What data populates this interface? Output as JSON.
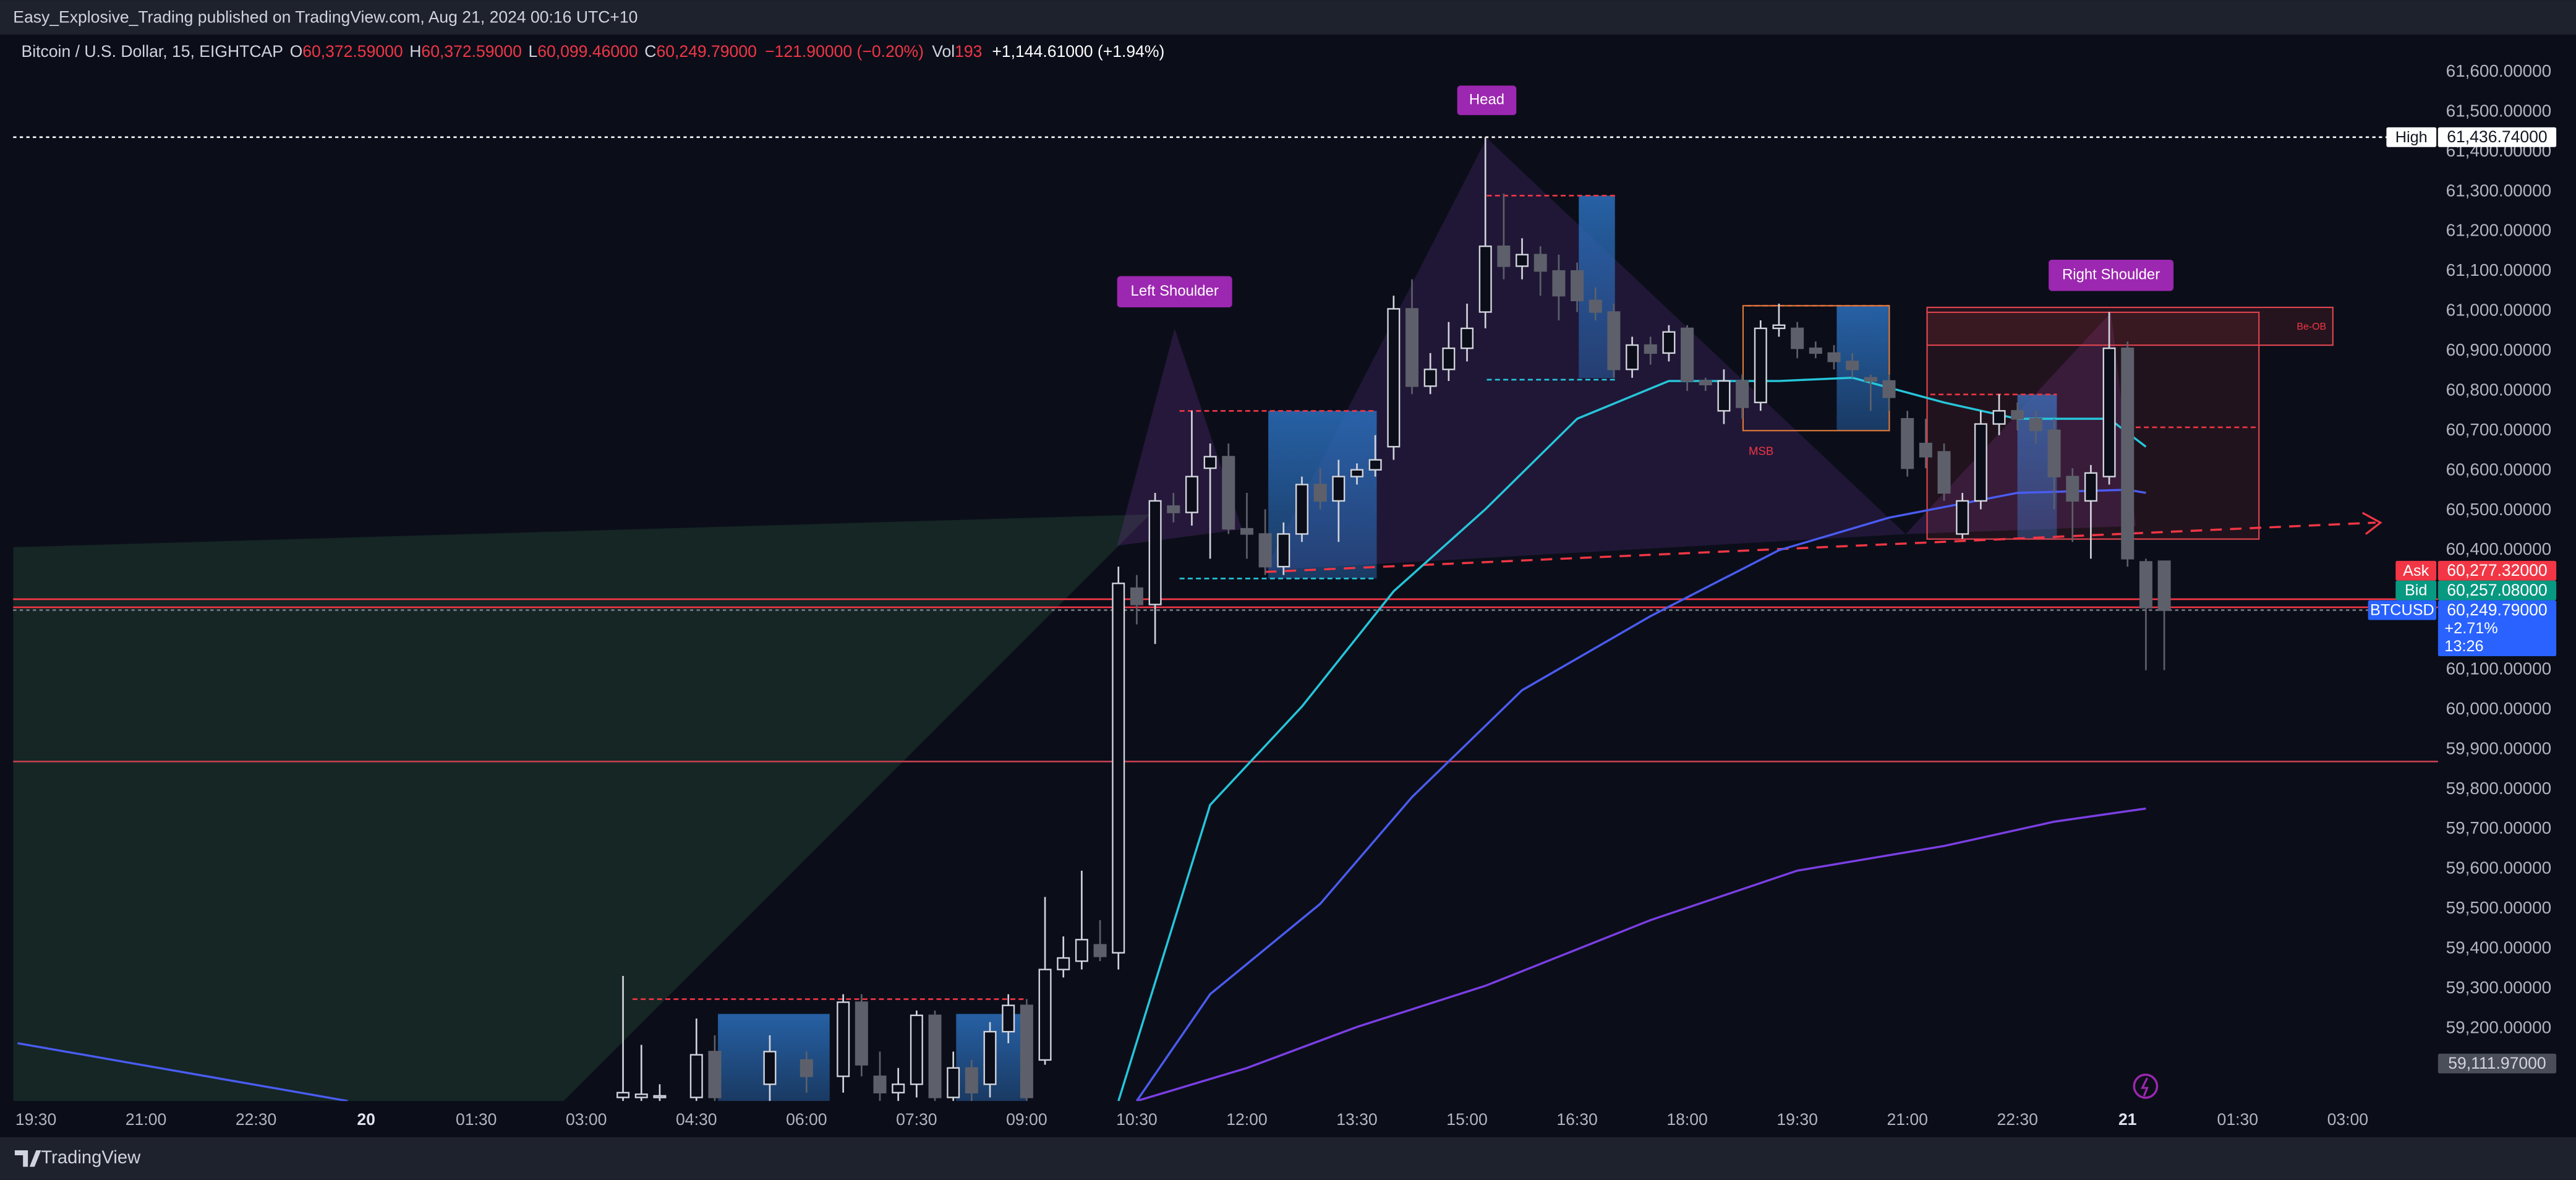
{
  "header": {
    "publisher": "Easy_Explosive_Trading published on TradingView.com, Aug 21, 2024 00:16 UTC+10"
  },
  "legend": {
    "symbol": "Bitcoin / U.S. Dollar, 15, EIGHTCAP",
    "open_label": "O",
    "open": "60,372.59000",
    "high_label": "H",
    "high": "60,372.59000",
    "low_label": "L",
    "low": "60,099.46000",
    "close_label": "C",
    "close": "60,249.79000",
    "change": "−121.90000 (−0.20%)",
    "volume_label": "Vol",
    "volume": "193",
    "indicator": "+1,144.61000 (+1.94%)"
  },
  "footer": {
    "brand": "TradingView"
  },
  "chart_data": {
    "type": "candlestick",
    "annotations": {
      "head": "Head",
      "left_shoulder": "Left Shoulder",
      "right_shoulder": "Right Shoulder",
      "msb": "MSB",
      "bearish_ob": "Be-OB"
    },
    "xlim": [
      -0.31,
      32.73
    ],
    "ylim": [
      59018,
      61690
    ],
    "grid": false,
    "xticks": [
      {
        "value": 0,
        "label": "19:30"
      },
      {
        "value": 1.5,
        "label": "21:00"
      },
      {
        "value": 3,
        "label": "22:30"
      },
      {
        "value": 4.5,
        "label": "20"
      },
      {
        "value": 6,
        "label": "01:30"
      },
      {
        "value": 7.5,
        "label": "03:00"
      },
      {
        "value": 9,
        "label": "04:30"
      },
      {
        "value": 10.5,
        "label": "06:00"
      },
      {
        "value": 12,
        "label": "07:30"
      },
      {
        "value": 13.5,
        "label": "09:00"
      },
      {
        "value": 15,
        "label": "10:30"
      },
      {
        "value": 16.5,
        "label": "12:00"
      },
      {
        "value": 18,
        "label": "13:30"
      },
      {
        "value": 19.5,
        "label": "15:00"
      },
      {
        "value": 21,
        "label": "16:30"
      },
      {
        "value": 22.5,
        "label": "18:00"
      },
      {
        "value": 24,
        "label": "19:30"
      },
      {
        "value": 25.5,
        "label": "21:00"
      },
      {
        "value": 27,
        "label": "22:30"
      },
      {
        "value": 28.5,
        "label": "21"
      },
      {
        "value": 30,
        "label": "01:30"
      },
      {
        "value": 31.5,
        "label": "03:00"
      }
    ],
    "yticks": [
      {
        "value": 61600,
        "label": "61,600.00000"
      },
      {
        "value": 61500,
        "label": "61,500.00000"
      },
      {
        "value": 61400,
        "label": "61,400.00000"
      },
      {
        "value": 61300,
        "label": "61,300.00000"
      },
      {
        "value": 61200,
        "label": "61,200.00000"
      },
      {
        "value": 61100,
        "label": "61,100.00000"
      },
      {
        "value": 61000,
        "label": "61,000.00000"
      },
      {
        "value": 60900,
        "label": "60,900.00000"
      },
      {
        "value": 60800,
        "label": "60,800.00000"
      },
      {
        "value": 60700,
        "label": "60,700.00000"
      },
      {
        "value": 60600,
        "label": "60,600.00000"
      },
      {
        "value": 60500,
        "label": "60,500.00000"
      },
      {
        "value": 60400,
        "label": "60,400.00000"
      },
      {
        "value": 60100,
        "label": "60,100.00000"
      },
      {
        "value": 60000,
        "label": "60,000.00000"
      },
      {
        "value": 59900,
        "label": "59,900.00000"
      },
      {
        "value": 59800,
        "label": "59,800.00000"
      },
      {
        "value": 59700,
        "label": "59,700.00000"
      },
      {
        "value": 59600,
        "label": "59,600.00000"
      },
      {
        "value": 59500,
        "label": "59,500.00000"
      },
      {
        "value": 59400,
        "label": "59,400.00000"
      },
      {
        "value": 59300,
        "label": "59,300.00000"
      },
      {
        "value": 59200,
        "label": "59,200.00000"
      }
    ],
    "up_color": "#d1d4dc",
    "down_color": "#5d606b",
    "x": [
      8,
      8.25,
      8.5,
      9,
      9.25,
      10,
      10.5,
      11,
      11.25,
      11.5,
      11.75,
      12,
      12.25,
      12.5,
      12.75,
      13,
      13.25,
      13.5,
      13.75,
      14,
      14.25,
      14.5,
      14.75,
      15,
      15.25,
      15.5,
      15.75,
      16,
      16.25,
      16.5,
      16.75,
      17,
      17.25,
      17.5,
      17.75,
      18,
      18.25,
      18.5,
      18.75,
      19,
      19.25,
      19.5,
      19.75,
      20,
      20.25,
      20.5,
      20.75,
      21,
      21.25,
      21.5,
      21.75,
      22,
      22.25,
      22.5,
      22.75,
      23,
      23.25,
      23.5,
      23.75,
      24,
      24.25,
      24.5,
      24.75,
      25,
      25.25,
      25.5,
      25.75,
      26,
      26.25,
      26.5,
      26.75,
      27,
      27.25,
      27.5,
      27.75,
      28,
      28.25,
      28.5,
      28.75,
      29
    ],
    "open": [
      59027,
      59027,
      59027,
      59027,
      59142,
      59060,
      59121,
      59080,
      59266,
      59080,
      59039,
      59060,
      59233,
      59027,
      59101,
      59060,
      59192,
      59258,
      59121,
      59348,
      59369,
      59410,
      59390,
      60305,
      60264,
      60511,
      60495,
      60606,
      60635,
      60454,
      60441,
      60359,
      60441,
      60565,
      60524,
      60585,
      60602,
      60660,
      61006,
      60812,
      60854,
      60907,
      60998,
      61163,
      61113,
      61142,
      61101,
      61101,
      61027,
      60998,
      60854,
      60915,
      60895,
      60957,
      60825,
      60750,
      60825,
      60771,
      60957,
      60957,
      60907,
      60895,
      60874,
      60833,
      60825,
      60730,
      60668,
      60647,
      60441,
      60524,
      60717,
      60750,
      60730,
      60701,
      60585,
      60524,
      60585,
      60907,
      60371,
      60372.59
    ],
    "high": [
      59332,
      59159,
      59060,
      59225,
      59183,
      59183,
      59142,
      59286,
      59286,
      59142,
      59101,
      59245,
      59245,
      59142,
      59121,
      59216,
      59286,
      59274,
      59530,
      59431,
      59596,
      59472,
      60359,
      60338,
      60544,
      60544,
      60750,
      60668,
      60668,
      60544,
      60503,
      60470,
      60585,
      60606,
      60627,
      60618,
      60689,
      61039,
      61080,
      60895,
      60973,
      61019,
      61436.74,
      61295,
      61183,
      61163,
      61142,
      61122,
      61060,
      61019,
      60936,
      60936,
      60965,
      60965,
      60833,
      60854,
      60841,
      60977,
      61019,
      60973,
      60924,
      60915,
      60895,
      60841,
      60841,
      60750,
      60730,
      60668,
      60544,
      60750,
      60792,
      60771,
      60750,
      60730,
      60606,
      60614,
      60998,
      60924,
      60379,
      60372.59
    ],
    "low": [
      59018,
      59018,
      59018,
      59018,
      59018,
      59018,
      59039,
      59039,
      59080,
      59018,
      59018,
      59027,
      59018,
      59018,
      59018,
      59027,
      59163,
      59018,
      59109,
      59328,
      59348,
      59369,
      59348,
      60214,
      60165,
      60470,
      60462,
      60379,
      60441,
      60379,
      60338,
      60338,
      60421,
      60503,
      60421,
      60565,
      60585,
      60627,
      60792,
      60792,
      60825,
      60874,
      60957,
      61080,
      61080,
      61039,
      60977,
      60998,
      60977,
      60833,
      60833,
      60866,
      60874,
      60800,
      60800,
      60717,
      60730,
      60750,
      60936,
      60882,
      60882,
      60854,
      60833,
      60750,
      60750,
      60585,
      60606,
      60524,
      60429,
      60503,
      60689,
      60701,
      60668,
      60503,
      60421,
      60379,
      60565,
      60359,
      60099,
      60099.46
    ],
    "close": [
      59039,
      59035,
      59031,
      59134,
      59027,
      59142,
      59080,
      59266,
      59109,
      59039,
      59060,
      59233,
      59027,
      59101,
      59039,
      59192,
      59258,
      59027,
      59348,
      59377,
      59423,
      59381,
      60317,
      60264,
      60524,
      60495,
      60585,
      60635,
      60454,
      60441,
      60359,
      60441,
      60565,
      60524,
      60585,
      60602,
      60627,
      61006,
      60812,
      60854,
      60907,
      60957,
      61163,
      61113,
      61142,
      61101,
      61039,
      61027,
      60998,
      60854,
      60915,
      60895,
      60948,
      60825,
      60816,
      60825,
      60759,
      60957,
      60965,
      60907,
      60895,
      60874,
      60854,
      60825,
      60784,
      60606,
      60635,
      60544,
      60524,
      60717,
      60750,
      60730,
      60701,
      60585,
      60524,
      60594,
      60907,
      60379,
      60256,
      60249.79
    ],
    "lines": [
      {
        "color": "#26c6da",
        "x": [
          14.75,
          16,
          17.25,
          18.5,
          19.75,
          21,
          22.25,
          23.75,
          24.75,
          26,
          27,
          28.25,
          28.75
        ],
        "values": [
          59018,
          59761,
          60008,
          60297,
          60503,
          60730,
          60825,
          60825,
          60833,
          60771,
          60730,
          60730,
          60660
        ]
      },
      {
        "color": "#4a5cf0",
        "x": [
          -0.25,
          4.25,
          9.75,
          15,
          16,
          17.5,
          18.75,
          20.25,
          22,
          23.75,
          25.25,
          27,
          28.5,
          28.75
        ],
        "values": [
          59163,
          59018,
          null,
          59018,
          59286,
          59513,
          59781,
          60049,
          60235,
          60400,
          60482,
          60544,
          60552,
          60544
        ]
      },
      {
        "color": "#7b3fe4",
        "x": [
          15,
          16.5,
          18,
          19.75,
          22,
          24,
          26,
          27.5,
          28.75
        ],
        "values": [
          59018,
          59101,
          59204,
          59307,
          59472,
          59596,
          59658,
          59719,
          59752
        ]
      }
    ],
    "hlines": [
      {
        "value": 59870,
        "color": "#c2404f"
      }
    ],
    "price_lines": [
      {
        "name": "High",
        "value": 61436.74,
        "label": "61,436.74000",
        "color": "#ffffff",
        "text_color": "#131722",
        "line": "dotted",
        "line_color": "#ffffff"
      },
      {
        "name": "Ask",
        "value": 60277.32,
        "label": "60,277.32000",
        "color": "#f23645",
        "text_color": "#ffffff",
        "line": "solid",
        "line_color": "#f23645"
      },
      {
        "name": "Bid",
        "value": 60257.08,
        "label": "60,257.08000",
        "color": "#089981",
        "text_color": "#ffffff",
        "line": "solid",
        "line_color": "#f23645"
      },
      {
        "name": "BTCUSD",
        "value": 60249.79,
        "label": "60,249.79000",
        "extra": [
          "+2.71%",
          "13:26"
        ],
        "color": "#2962ff",
        "text_color": "#ffffff",
        "line": "dotted",
        "line_color": "#787b86"
      },
      {
        "value": 59111.97,
        "label": "59,111.97000",
        "color": "#4a4e59",
        "text_color": "#d1d4dc",
        "line": "none"
      }
    ]
  }
}
